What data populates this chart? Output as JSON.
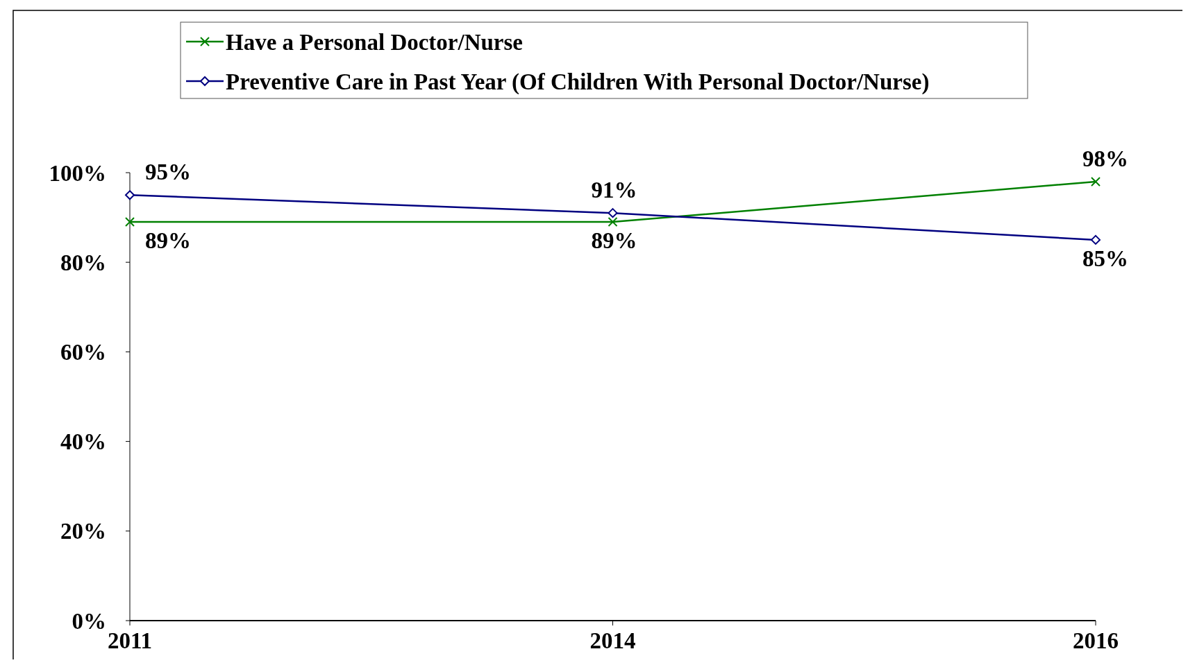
{
  "chart_data": {
    "type": "line",
    "categories": [
      "2011",
      "2014",
      "2016"
    ],
    "series": [
      {
        "name": "Have a Personal Doctor/Nurse",
        "color": "#008000",
        "marker": "cross",
        "values": [
          89,
          89,
          98
        ],
        "value_labels": [
          "89%",
          "89%",
          "98%"
        ]
      },
      {
        "name": "Preventive Care in Past Year (Of Children With Personal Doctor/Nurse)",
        "color": "#000080",
        "marker": "diamond",
        "values": [
          95,
          91,
          85
        ],
        "value_labels": [
          "95%",
          "91%",
          "85%"
        ]
      }
    ],
    "ylim": [
      0,
      100
    ],
    "yticks": [
      {
        "value": 0,
        "label": "0%"
      },
      {
        "value": 20,
        "label": "20%"
      },
      {
        "value": 40,
        "label": "40%"
      },
      {
        "value": 60,
        "label": "60%"
      },
      {
        "value": 80,
        "label": "80%"
      },
      {
        "value": 100,
        "label": "100%"
      }
    ],
    "legend": "top",
    "grid": false,
    "line_style": "solid"
  }
}
